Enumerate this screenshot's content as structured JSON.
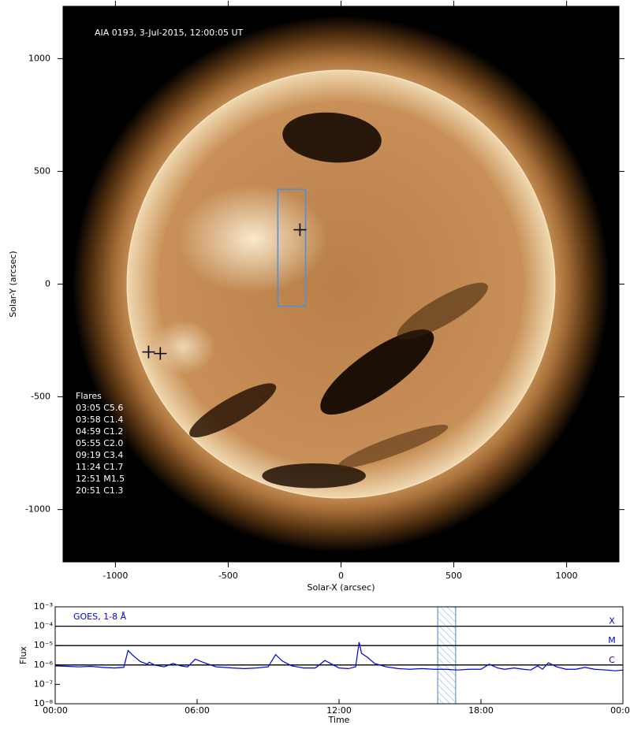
{
  "chart_data": [
    {
      "type": "image",
      "title": "AIA 0193, 3-Jul-2015, 12:00:05 UT",
      "x_label": "Solar-X (arcsec)",
      "y_label": "Solar-Y (arcsec)",
      "xlim": [
        -1232,
        1232
      ],
      "ylim": [
        -1232,
        1232
      ],
      "xticks": [
        -1000,
        -500,
        0,
        500,
        1000
      ],
      "yticks": [
        -1000,
        -500,
        0,
        500,
        1000
      ],
      "box": {
        "x": [
          -280,
          -157
        ],
        "y": [
          -98,
          420
        ],
        "color": "#4a90e2"
      },
      "markers": {
        "x": [
          -182,
          -853,
          -801
        ],
        "y": [
          241,
          -301,
          -308
        ]
      },
      "flares_title": "Flares",
      "flares": [
        "03:05 C5.6",
        "03:58 C1.4",
        "04:59 C1.2",
        "05:55 C2.0",
        "09:19 C3.4",
        "11:24 C1.7",
        "12:51 M1.5",
        "20:51 C1.3"
      ]
    },
    {
      "type": "line",
      "title": "GOES, 1-8 Å",
      "x_label": "Time",
      "y_label": "Flux",
      "log_y": true,
      "xlim": [
        0,
        24
      ],
      "ylim": [
        1e-08,
        0.001
      ],
      "xticks": [
        {
          "value": 0,
          "label": "00:00"
        },
        {
          "value": 6,
          "label": "06:00"
        },
        {
          "value": 12,
          "label": "12:00"
        },
        {
          "value": 18,
          "label": "18:00"
        },
        {
          "value": 24,
          "label": "00:00"
        }
      ],
      "yticks": [
        {
          "value": 1e-08,
          "label": "10⁻⁸"
        },
        {
          "value": 1e-07,
          "label": "10⁻⁷"
        },
        {
          "value": 1e-06,
          "label": "10⁻⁶"
        },
        {
          "value": 1e-05,
          "label": "10⁻⁵"
        },
        {
          "value": 0.0001,
          "label": "10⁻⁴"
        },
        {
          "value": 0.001,
          "label": "10⁻³"
        }
      ],
      "levels": [
        {
          "value": 1e-06,
          "label": "C"
        },
        {
          "value": 1e-05,
          "label": "M"
        },
        {
          "value": 0.0001,
          "label": "X"
        }
      ],
      "highlight": [
        16.17,
        16.93
      ],
      "series": [
        {
          "name": "GOES, 1-8 Å",
          "color": "#0000dd",
          "x": [
            0.0,
            0.5,
            1.0,
            1.5,
            2.0,
            2.5,
            2.9,
            3.08,
            3.3,
            3.6,
            3.9,
            3.97,
            4.2,
            4.6,
            4.98,
            5.3,
            5.6,
            5.92,
            6.3,
            6.8,
            7.5,
            8.0,
            8.5,
            9.0,
            9.32,
            9.6,
            10.0,
            10.5,
            11.0,
            11.4,
            11.7,
            12.0,
            12.4,
            12.7,
            12.85,
            12.95,
            13.2,
            13.5,
            14.0,
            14.5,
            15.0,
            15.5,
            16.0,
            16.5,
            17.0,
            17.5,
            18.0,
            18.35,
            18.7,
            19.0,
            19.4,
            19.8,
            20.1,
            20.4,
            20.6,
            20.85,
            21.2,
            21.6,
            22.0,
            22.4,
            22.8,
            23.3,
            23.7,
            24.0
          ],
          "values": [
            9e-07,
            8.5e-07,
            8e-07,
            8.5e-07,
            7.5e-07,
            7e-07,
            7.5e-07,
            5.6e-06,
            3e-06,
            1.5e-06,
            1.1e-06,
            1.4e-06,
            1e-06,
            8e-07,
            1.2e-06,
            9e-07,
            8e-07,
            2e-06,
            1.3e-06,
            8e-07,
            7e-07,
            6.5e-07,
            7e-07,
            8e-07,
            3.4e-06,
            1.6e-06,
            9e-07,
            7e-07,
            7e-07,
            1.7e-06,
            1.1e-06,
            7e-07,
            6.5e-07,
            8e-07,
            1.5e-05,
            4e-06,
            2.5e-06,
            1.2e-06,
            8e-07,
            6.5e-07,
            6e-07,
            6.5e-07,
            6e-07,
            6e-07,
            5.5e-07,
            6e-07,
            6e-07,
            1.1e-06,
            7e-07,
            6e-07,
            7e-07,
            6e-07,
            5.5e-07,
            9e-07,
            6e-07,
            1.3e-06,
            8e-07,
            6e-07,
            6e-07,
            7.5e-07,
            6e-07,
            5.5e-07,
            5e-07,
            5.5e-07
          ]
        }
      ]
    }
  ]
}
